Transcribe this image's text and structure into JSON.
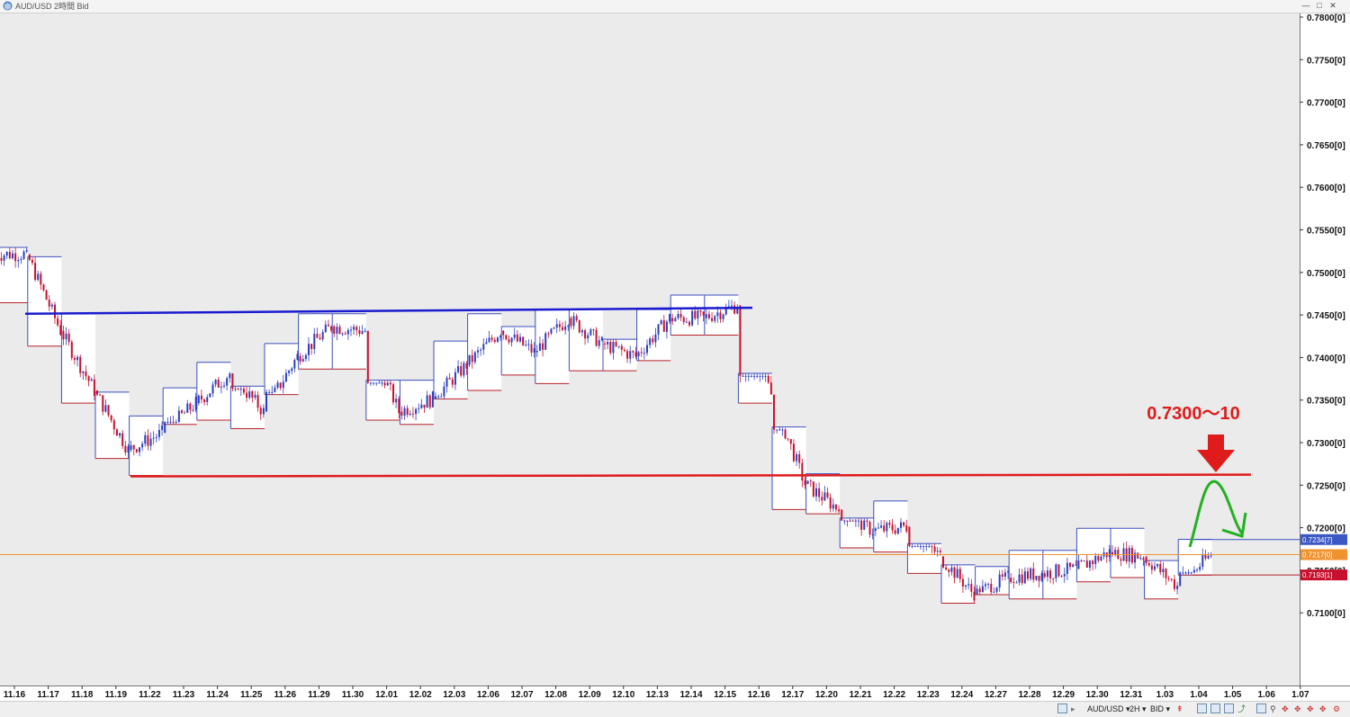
{
  "window": {
    "title": "AUD/USD 2時間 Bid",
    "buttons": [
      "—",
      "□",
      "✕"
    ]
  },
  "chart_data": {
    "type": "candlestick",
    "instrument": "AUD/USD",
    "timeframe": "2時間",
    "price_type": "Bid",
    "ylim": [
      0.706,
      0.7845
    ],
    "y_ticks": [
      "0.7800[0]",
      "0.7750[0]",
      "0.7700[0]",
      "0.7650[0]",
      "0.7600[0]",
      "0.7550[0]",
      "0.7500[0]",
      "0.7450[0]",
      "0.7400[0]",
      "0.7350[0]",
      "0.7300[0]",
      "0.7250[0]",
      "0.7200[0]",
      "0.7150[0]",
      "0.7100[0]"
    ],
    "x_ticks": [
      "11.16",
      "11.17",
      "11.18",
      "11.19",
      "11.22",
      "11.23",
      "11.24",
      "11.25",
      "11.26",
      "11.29",
      "11.30",
      "12.01",
      "12.02",
      "12.03",
      "12.06",
      "12.07",
      "12.08",
      "12.09",
      "12.10",
      "12.13",
      "12.14",
      "12.15",
      "12.16",
      "12.17",
      "12.20",
      "12.21",
      "12.22",
      "12.23",
      "12.24",
      "12.27",
      "12.28",
      "12.29",
      "12.30",
      "12.31",
      "1.03",
      "1.04",
      "1.05",
      "1.06",
      "1.07"
    ],
    "price_tags": [
      {
        "label": "0.7234[7]",
        "value": 0.72347,
        "color": "#3b58c4"
      },
      {
        "label": "0.7217[0]",
        "value": 0.7217,
        "color": "#f0922e"
      },
      {
        "label": "0.7193[1]",
        "value": 0.71931,
        "color": "#c8102e"
      }
    ],
    "daily_ranges": [
      {
        "day": "11.16",
        "high": 0.7578,
        "low": 0.7513
      },
      {
        "day": "11.17",
        "high": 0.7567,
        "low": 0.7462
      },
      {
        "day": "11.18",
        "high": 0.75,
        "low": 0.7395
      },
      {
        "day": "11.19",
        "high": 0.7408,
        "low": 0.733
      },
      {
        "day": "11.22",
        "high": 0.738,
        "low": 0.731
      },
      {
        "day": "11.23",
        "high": 0.7413,
        "low": 0.737
      },
      {
        "day": "11.24",
        "high": 0.7443,
        "low": 0.7375
      },
      {
        "day": "11.25",
        "high": 0.7415,
        "low": 0.7365
      },
      {
        "day": "11.26",
        "high": 0.7465,
        "low": 0.7405
      },
      {
        "day": "11.29",
        "high": 0.75,
        "low": 0.7435
      },
      {
        "day": "11.30",
        "high": 0.75,
        "low": 0.7435
      },
      {
        "day": "12.01",
        "high": 0.7422,
        "low": 0.7375
      },
      {
        "day": "12.02",
        "high": 0.7422,
        "low": 0.737
      },
      {
        "day": "12.03",
        "high": 0.7468,
        "low": 0.74
      },
      {
        "day": "12.06",
        "high": 0.75,
        "low": 0.741
      },
      {
        "day": "12.07",
        "high": 0.7485,
        "low": 0.7428
      },
      {
        "day": "12.08",
        "high": 0.7505,
        "low": 0.7418
      },
      {
        "day": "12.09",
        "high": 0.7505,
        "low": 0.7433
      },
      {
        "day": "12.10",
        "high": 0.747,
        "low": 0.7433
      },
      {
        "day": "12.13",
        "high": 0.7505,
        "low": 0.7445
      },
      {
        "day": "12.14",
        "high": 0.7522,
        "low": 0.7475
      },
      {
        "day": "12.15",
        "high": 0.7522,
        "low": 0.7475
      },
      {
        "day": "12.16",
        "high": 0.743,
        "low": 0.7395
      },
      {
        "day": "12.17",
        "high": 0.7367,
        "low": 0.727
      },
      {
        "day": "12.20",
        "high": 0.7312,
        "low": 0.7265
      },
      {
        "day": "12.21",
        "high": 0.726,
        "low": 0.7225
      },
      {
        "day": "12.22",
        "high": 0.728,
        "low": 0.722
      },
      {
        "day": "12.23",
        "high": 0.723,
        "low": 0.7195
      },
      {
        "day": "12.24",
        "high": 0.7205,
        "low": 0.716
      },
      {
        "day": "12.27",
        "high": 0.7203,
        "low": 0.717
      },
      {
        "day": "12.28",
        "high": 0.7222,
        "low": 0.7165
      },
      {
        "day": "12.29",
        "high": 0.7222,
        "low": 0.7165
      },
      {
        "day": "12.30",
        "high": 0.7248,
        "low": 0.7185
      },
      {
        "day": "12.31",
        "high": 0.7248,
        "low": 0.719
      },
      {
        "day": "1.03",
        "high": 0.721,
        "low": 0.7165
      },
      {
        "day": "1.04",
        "high": 0.7235,
        "low": 0.7193
      }
    ],
    "price_path": [
      {
        "day": "11.16",
        "price": 0.757
      },
      {
        "day": "11.17",
        "price": 0.748
      },
      {
        "day": "11.18",
        "price": 0.741
      },
      {
        "day": "11.19",
        "price": 0.734
      },
      {
        "day": "11.22",
        "price": 0.736
      },
      {
        "day": "11.23",
        "price": 0.7395
      },
      {
        "day": "11.24",
        "price": 0.743
      },
      {
        "day": "11.25",
        "price": 0.7385
      },
      {
        "day": "11.26",
        "price": 0.745
      },
      {
        "day": "11.29",
        "price": 0.7485
      },
      {
        "day": "11.30",
        "price": 0.748
      },
      {
        "day": "12.01",
        "price": 0.7385
      },
      {
        "day": "12.02",
        "price": 0.74
      },
      {
        "day": "12.03",
        "price": 0.744
      },
      {
        "day": "12.06",
        "price": 0.748
      },
      {
        "day": "12.07",
        "price": 0.7455
      },
      {
        "day": "12.08",
        "price": 0.7495
      },
      {
        "day": "12.09",
        "price": 0.7465
      },
      {
        "day": "12.10",
        "price": 0.745
      },
      {
        "day": "12.13",
        "price": 0.7495
      },
      {
        "day": "12.14",
        "price": 0.7495
      },
      {
        "day": "12.15",
        "price": 0.751
      },
      {
        "day": "12.16",
        "price": 0.7405
      },
      {
        "day": "12.17",
        "price": 0.73
      },
      {
        "day": "12.20",
        "price": 0.727
      },
      {
        "day": "12.21",
        "price": 0.7245
      },
      {
        "day": "12.22",
        "price": 0.725
      },
      {
        "day": "12.23",
        "price": 0.7215
      },
      {
        "day": "12.24",
        "price": 0.717
      },
      {
        "day": "12.27",
        "price": 0.719
      },
      {
        "day": "12.28",
        "price": 0.7195
      },
      {
        "day": "12.29",
        "price": 0.72
      },
      {
        "day": "12.30",
        "price": 0.722
      },
      {
        "day": "12.31",
        "price": 0.7215
      },
      {
        "day": "1.03",
        "price": 0.718
      },
      {
        "day": "1.04",
        "price": 0.7217
      }
    ],
    "lines": {
      "resistance": {
        "price_start": 0.75,
        "price_end": 0.7507,
        "color": "#1a1ad0"
      },
      "support": {
        "price_start": 0.7309,
        "price_end": 0.7311,
        "color": "#e01b1b"
      },
      "current_price": {
        "price": 0.7217,
        "color": "#f0922e"
      }
    },
    "annotation": {
      "text": "0.7300〜10",
      "color": "#e01b1b"
    },
    "arrow_colors": {
      "down_arrow": "#e01b1b",
      "forecast": "#22b022"
    },
    "candle_colors": {
      "up": "#2a3fbf",
      "down": "#c8102e"
    },
    "grid": false
  },
  "statusbar": {
    "symbol": "AUD/USD",
    "timeframe": "2H",
    "price_type": "BID"
  }
}
